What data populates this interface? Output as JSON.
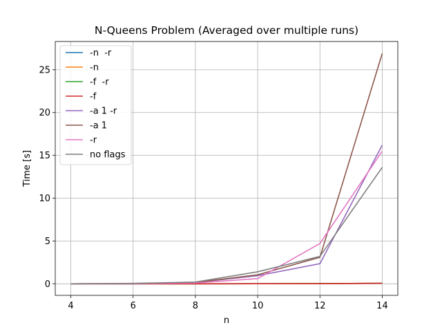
{
  "chart_data": {
    "type": "line",
    "title": "N-Queens Problem (Averaged over multiple runs)",
    "xlabel": "n",
    "ylabel": "Time [s]",
    "x": [
      4,
      6,
      8,
      10,
      12,
      14
    ],
    "xlim": [
      3.5,
      14.5
    ],
    "ylim": [
      -1.35,
      28.3
    ],
    "xticks": [
      4,
      6,
      8,
      10,
      12,
      14
    ],
    "yticks": [
      0,
      5,
      10,
      15,
      20,
      25
    ],
    "grid": true,
    "legend_position": "top-left",
    "series": [
      {
        "name": "-n  -r",
        "color": "#1f77b4",
        "values": [
          0.0,
          0.0,
          0.0,
          0.01,
          0.02,
          0.05
        ]
      },
      {
        "name": "-n",
        "color": "#ff7f0e",
        "values": [
          0.0,
          0.0,
          0.0,
          0.01,
          0.02,
          0.05
        ]
      },
      {
        "name": "-f  -r",
        "color": "#2ca02c",
        "values": [
          0.0,
          0.0,
          0.0,
          0.01,
          0.02,
          0.06
        ]
      },
      {
        "name": "-f",
        "color": "#d62728",
        "values": [
          0.0,
          0.0,
          0.0,
          0.01,
          0.02,
          0.06
        ]
      },
      {
        "name": "-a 1 -r",
        "color": "#9467bd",
        "values": [
          0.0,
          0.02,
          0.15,
          0.95,
          2.35,
          16.2
        ]
      },
      {
        "name": "-a 1",
        "color": "#8c564b",
        "values": [
          0.0,
          0.02,
          0.15,
          1.05,
          3.1,
          26.9
        ]
      },
      {
        "name": "-r",
        "color": "#e377c2",
        "values": [
          0.0,
          0.02,
          0.1,
          0.6,
          4.7,
          15.5
        ]
      },
      {
        "name": "no flags",
        "color": "#7f7f7f",
        "values": [
          0.0,
          0.05,
          0.2,
          1.4,
          3.2,
          13.6
        ]
      }
    ]
  }
}
